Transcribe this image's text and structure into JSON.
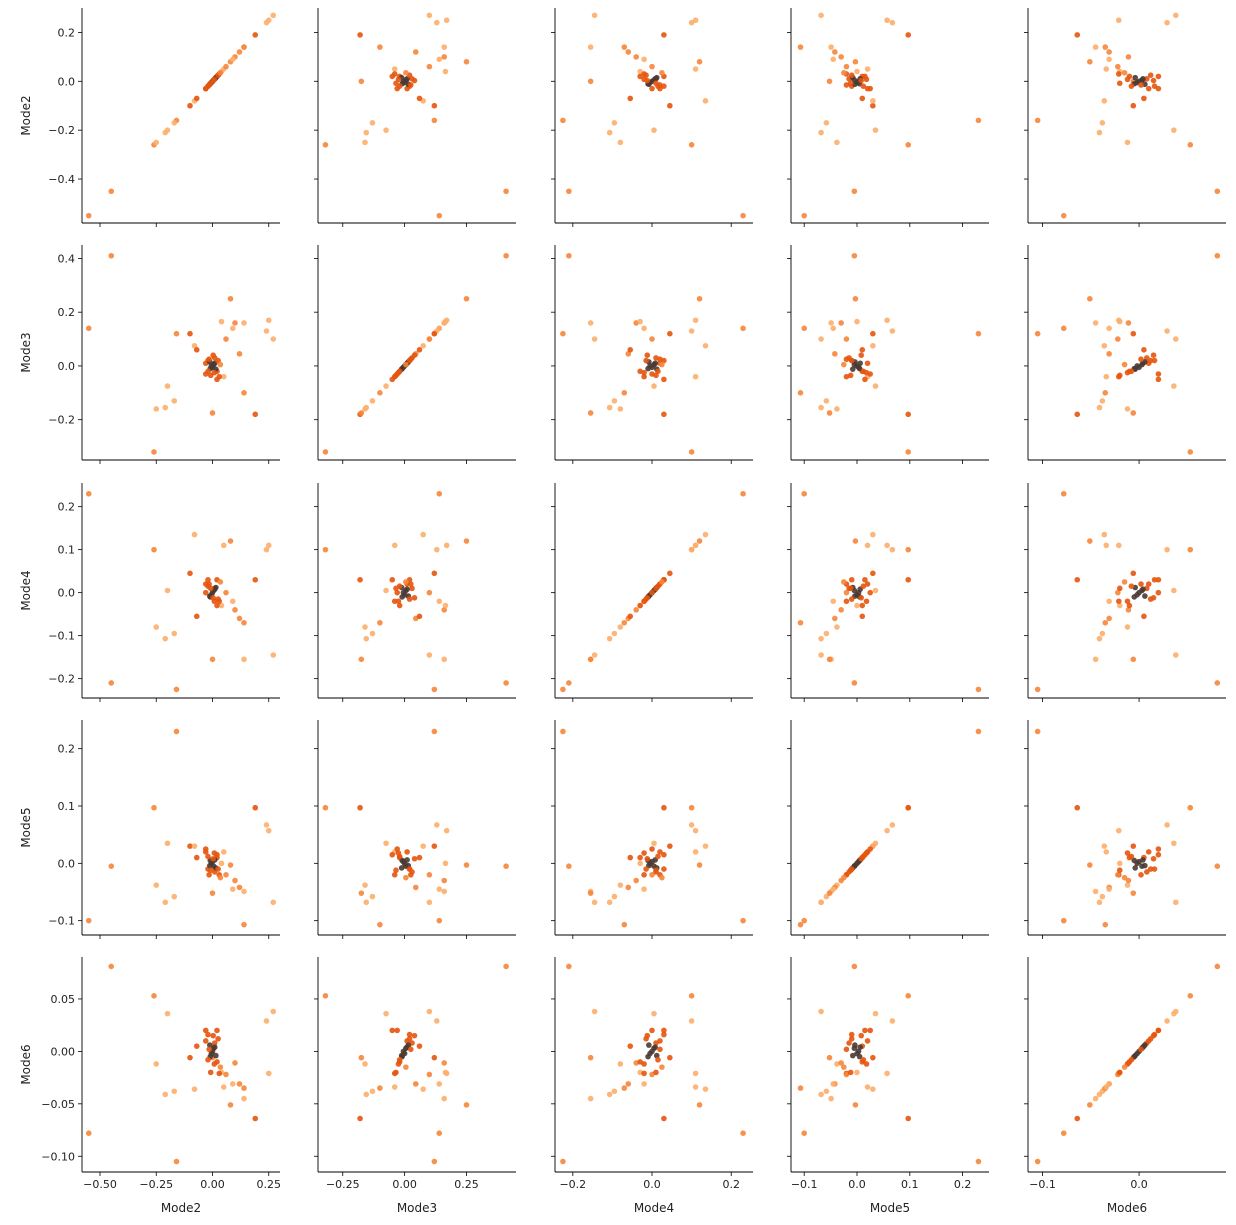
{
  "chart_data": {
    "type": "scatter",
    "variables": [
      "Mode2",
      "Mode3",
      "Mode4",
      "Mode5",
      "Mode6"
    ],
    "ranges": {
      "Mode2": [
        -0.58,
        0.3
      ],
      "Mode3": [
        -0.35,
        0.45
      ],
      "Mode4": [
        -0.245,
        0.255
      ],
      "Mode5": [
        -0.125,
        0.25
      ],
      "Mode6": [
        -0.115,
        0.09
      ]
    },
    "x_ticks": {
      "Mode2": [
        -0.5,
        -0.25,
        0.0,
        0.25
      ],
      "Mode3": [
        -0.25,
        0.0,
        0.25
      ],
      "Mode4": [
        -0.2,
        0.0,
        0.2
      ],
      "Mode5": [
        -0.1,
        0.0,
        0.1,
        0.2
      ],
      "Mode6": [
        -0.1,
        0.0
      ]
    },
    "x_tick_labels": {
      "Mode2": [
        "−0.50",
        "−0.25",
        "0.00",
        "0.25"
      ],
      "Mode3": [
        "−0.25",
        "0.00",
        "0.25"
      ],
      "Mode4": [
        "−0.2",
        "0.0",
        "0.2"
      ],
      "Mode5": [
        "−0.1",
        "0.0",
        "0.1",
        "0.2"
      ],
      "Mode6": [
        "−0.1",
        "0.0"
      ]
    },
    "y_ticks": {
      "Mode2": [
        -0.4,
        -0.2,
        0.0,
        0.2
      ],
      "Mode3": [
        -0.2,
        0.0,
        0.2,
        0.4
      ],
      "Mode4": [
        -0.2,
        -0.1,
        0.0,
        0.1,
        0.2
      ],
      "Mode5": [
        -0.1,
        0.0,
        0.1,
        0.2
      ],
      "Mode6": [
        -0.1,
        -0.05,
        0.0,
        0.05
      ]
    },
    "y_tick_labels": {
      "Mode2": [
        "−0.4",
        "−0.2",
        "0.0",
        "0.2"
      ],
      "Mode3": [
        "−0.2",
        "0.0",
        "0.2",
        "0.4"
      ],
      "Mode4": [
        "−0.2",
        "−0.1",
        "0.0",
        "0.1",
        "0.2"
      ],
      "Mode5": [
        "−0.1",
        "0.0",
        "0.1",
        "0.2"
      ],
      "Mode6": [
        "−0.10",
        "−0.05",
        "0.00",
        "0.05"
      ]
    },
    "palette": [
      "#fdae6b",
      "#f5863a",
      "#e6550d",
      "#4a3a33"
    ],
    "grid": false,
    "points": [
      {
        "v": [
          -0.55,
          0.14,
          0.23,
          -0.1,
          -0.078
        ],
        "c": 1
      },
      {
        "v": [
          -0.45,
          0.41,
          -0.21,
          -0.005,
          0.081
        ],
        "c": 1
      },
      {
        "v": [
          -0.16,
          0.12,
          -0.225,
          0.23,
          -0.105
        ],
        "c": 1
      },
      {
        "v": [
          -0.26,
          -0.32,
          0.1,
          0.097,
          0.053
        ],
        "c": 1
      },
      {
        "v": [
          0.27,
          0.1,
          -0.145,
          -0.068,
          0.038
        ],
        "c": 0
      },
      {
        "v": [
          0.25,
          0.17,
          0.11,
          0.057,
          -0.021
        ],
        "c": 0
      },
      {
        "v": [
          0.24,
          0.13,
          0.1,
          0.067,
          0.029
        ],
        "c": 0
      },
      {
        "v": [
          0.19,
          -0.18,
          0.03,
          0.097,
          -0.064
        ],
        "c": 2
      },
      {
        "v": [
          -0.25,
          -0.16,
          -0.08,
          -0.038,
          -0.012
        ],
        "c": 0
      },
      {
        "v": [
          -0.21,
          -0.155,
          -0.107,
          -0.068,
          -0.041
        ],
        "c": 0
      },
      {
        "v": [
          -0.2,
          -0.075,
          0.005,
          0.035,
          0.036
        ],
        "c": 0
      },
      {
        "v": [
          -0.17,
          -0.13,
          -0.095,
          -0.058,
          -0.038
        ],
        "c": 0
      },
      {
        "v": [
          -0.1,
          0.12,
          0.045,
          0.03,
          -0.006
        ],
        "c": 2
      },
      {
        "v": [
          -0.08,
          0.075,
          0.135,
          0.03,
          -0.036
        ],
        "c": 0
      },
      {
        "v": [
          0.08,
          0.25,
          0.12,
          -0.003,
          -0.051
        ],
        "c": 1
      },
      {
        "v": [
          0.1,
          0.16,
          -0.04,
          -0.03,
          -0.011
        ],
        "c": 1
      },
      {
        "v": [
          0.12,
          0.045,
          -0.06,
          -0.042,
          -0.031
        ],
        "c": 1
      },
      {
        "v": [
          0.14,
          0.16,
          -0.155,
          -0.049,
          -0.045
        ],
        "c": 0
      },
      {
        "v": [
          0.14,
          -0.1,
          -0.07,
          -0.107,
          -0.035
        ],
        "c": 1
      },
      {
        "v": [
          0.05,
          -0.04,
          0.11,
          0.02,
          -0.034
        ],
        "c": 0
      },
      {
        "v": [
          0.0,
          -0.175,
          -0.155,
          -0.052,
          -0.006
        ],
        "c": 1
      },
      {
        "v": [
          0.04,
          0.165,
          -0.03,
          0.0,
          -0.02
        ],
        "c": 0
      },
      {
        "v": [
          0.02,
          -0.05,
          0.03,
          0.015,
          0.02
        ],
        "c": 2
      },
      {
        "v": [
          -0.02,
          0.02,
          0.03,
          -0.01,
          0.016
        ],
        "c": 2
      },
      {
        "v": [
          0.03,
          -0.04,
          -0.02,
          -0.02,
          -0.021
        ],
        "c": 2
      },
      {
        "v": [
          0.09,
          0.14,
          -0.02,
          -0.045,
          -0.031
        ],
        "c": 0
      },
      {
        "v": [
          -0.07,
          0.06,
          -0.055,
          0.01,
          0.005
        ],
        "c": 2
      },
      {
        "v": [
          0.06,
          0.1,
          0.0,
          -0.02,
          -0.022
        ],
        "c": 1
      },
      {
        "v": [
          -0.03,
          0.01,
          0.02,
          0.02,
          0.01
        ],
        "c": 2
      },
      {
        "v": [
          0.02,
          -0.02,
          -0.03,
          0.01,
          -0.01
        ],
        "c": 2
      },
      {
        "v": [
          0.01,
          0.03,
          0.01,
          -0.015,
          0.008
        ],
        "c": 2
      },
      {
        "v": [
          -0.01,
          -0.01,
          -0.01,
          0.005,
          -0.005
        ],
        "c": 3
      },
      {
        "v": [
          0.005,
          0.005,
          0.005,
          -0.005,
          0.003
        ],
        "c": 3
      },
      {
        "v": [
          -0.005,
          0.0,
          -0.005,
          0.0,
          -0.002
        ],
        "c": 3
      },
      {
        "v": [
          0.0,
          -0.005,
          0.0,
          0.003,
          0.0
        ],
        "c": 3
      },
      {
        "v": [
          0.01,
          0.01,
          0.008,
          0.006,
          0.004
        ],
        "c": 3
      },
      {
        "v": [
          -0.012,
          0.015,
          -0.008,
          -0.004,
          0.006
        ],
        "c": 3
      },
      {
        "v": [
          0.015,
          -0.012,
          0.012,
          -0.008,
          -0.004
        ],
        "c": 3
      },
      {
        "v": [
          -0.02,
          -0.02,
          0.015,
          0.012,
          -0.008
        ],
        "c": 2
      },
      {
        "v": [
          0.025,
          0.02,
          -0.015,
          -0.01,
          0.012
        ],
        "c": 2
      },
      {
        "v": [
          -0.015,
          0.025,
          0.02,
          -0.02,
          0.002
        ],
        "c": 2
      },
      {
        "v": [
          0.008,
          -0.025,
          -0.02,
          0.018,
          -0.012
        ],
        "c": 2
      },
      {
        "v": [
          -0.03,
          -0.03,
          0.0,
          0.025,
          0.02
        ],
        "c": 2
      },
      {
        "v": [
          0.035,
          0.005,
          0.025,
          -0.025,
          -0.015
        ],
        "c": 1
      },
      {
        "v": [
          0.003,
          0.04,
          -0.012,
          0.008,
          0.015
        ],
        "c": 2
      },
      {
        "v": [
          -0.008,
          -0.035,
          0.01,
          -0.012,
          -0.02
        ],
        "c": 2
      }
    ]
  }
}
